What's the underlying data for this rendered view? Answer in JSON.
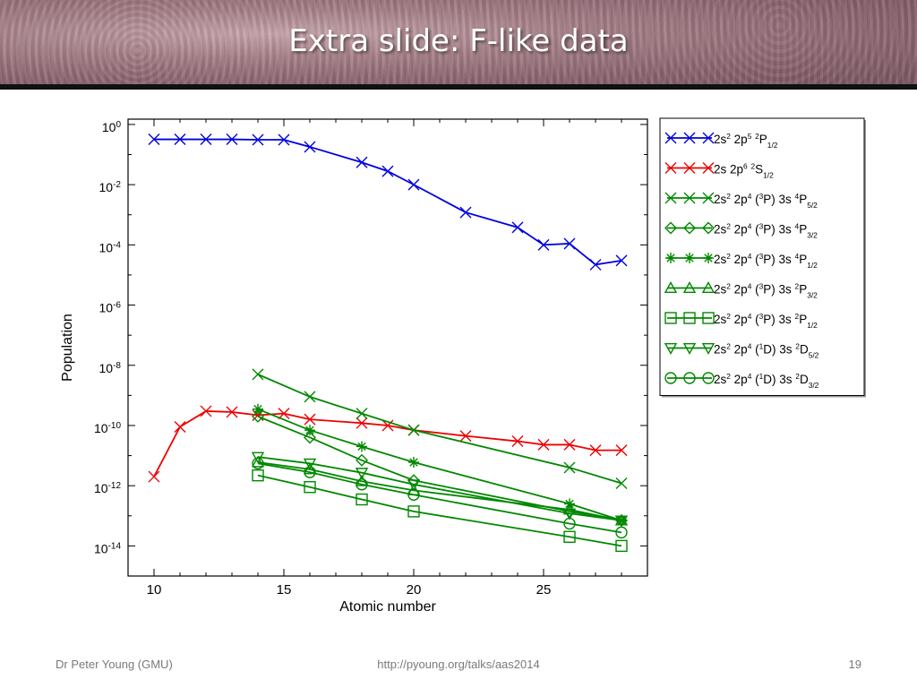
{
  "slide": {
    "title": "Extra slide: F-like data",
    "footer_left": "Dr Peter Young (GMU)",
    "footer_center": "http://pyoung.org/talks/aas2014",
    "footer_right": "19"
  },
  "colors": {
    "blue": "#0000dd",
    "red": "#ee0000",
    "green": "#008800"
  },
  "chart_data": {
    "type": "line",
    "title": "",
    "xlabel": "Atomic number",
    "ylabel": "Population",
    "xlim": [
      9,
      29
    ],
    "ylim": [
      1e-15,
      1.5
    ],
    "yscale": "log",
    "xticks": [
      10,
      15,
      20,
      25
    ],
    "yticks": [
      {
        "exp": 0,
        "label": "10",
        "sup": "0"
      },
      {
        "exp": -2,
        "label": "10",
        "sup": "-2"
      },
      {
        "exp": -4,
        "label": "10",
        "sup": "-4"
      },
      {
        "exp": -6,
        "label": "10",
        "sup": "-6"
      },
      {
        "exp": -8,
        "label": "10",
        "sup": "-8"
      },
      {
        "exp": -10,
        "label": "10",
        "sup": "-10"
      },
      {
        "exp": -12,
        "label": "10",
        "sup": "-12"
      },
      {
        "exp": -14,
        "label": "10",
        "sup": "-14"
      }
    ],
    "legend_position": "right",
    "series": [
      {
        "label": [
          [
            "2s",
            ""
          ],
          [
            "2",
            "sup"
          ],
          [
            " 2p",
            ""
          ],
          [
            "5",
            "sup"
          ],
          [
            " ",
            ""
          ],
          [
            "2",
            "sup"
          ],
          [
            "P",
            ""
          ],
          [
            "1/2",
            "sub"
          ]
        ],
        "color": "#0000dd",
        "marker": "x",
        "x": [
          10,
          11,
          12,
          13,
          14,
          15,
          16,
          18,
          19,
          20,
          22,
          24,
          25,
          26,
          27,
          28
        ],
        "y": [
          0.32,
          0.32,
          0.32,
          0.32,
          0.31,
          0.31,
          0.18,
          0.055,
          0.028,
          0.01,
          0.0012,
          0.00038,
          0.0001,
          0.00011,
          2.2e-05,
          3e-05
        ]
      },
      {
        "label": [
          [
            "2s 2p",
            ""
          ],
          [
            "6",
            "sup"
          ],
          [
            " ",
            ""
          ],
          [
            "2",
            "sup"
          ],
          [
            "S",
            ""
          ],
          [
            "1/2",
            "sub"
          ]
        ],
        "color": "#ee0000",
        "marker": "x",
        "x": [
          10,
          11,
          12,
          13,
          14,
          15,
          16,
          18,
          19,
          20,
          22,
          24,
          25,
          26,
          27,
          28
        ],
        "y": [
          2e-12,
          9e-11,
          3e-10,
          2.8e-10,
          2.2e-10,
          2.5e-10,
          1.6e-10,
          1.2e-10,
          1e-10,
          7e-11,
          4.5e-11,
          3e-11,
          2.3e-11,
          2.3e-11,
          1.5e-11,
          1.5e-11
        ]
      },
      {
        "label": [
          [
            "2s",
            ""
          ],
          [
            "2",
            "sup"
          ],
          [
            " 2p",
            ""
          ],
          [
            "4",
            "sup"
          ],
          [
            " (",
            ""
          ],
          [
            "3",
            "sup"
          ],
          [
            "P) 3s ",
            ""
          ],
          [
            "4",
            "sup"
          ],
          [
            "P",
            ""
          ],
          [
            "5/2",
            "sub"
          ]
        ],
        "color": "#008800",
        "marker": "x",
        "x": [
          14,
          16,
          18,
          20,
          26,
          28
        ],
        "y": [
          5e-09,
          9e-10,
          2.5e-10,
          7e-11,
          4e-12,
          1.2e-12
        ]
      },
      {
        "label": [
          [
            "2s",
            ""
          ],
          [
            "2",
            "sup"
          ],
          [
            " 2p",
            ""
          ],
          [
            "4",
            "sup"
          ],
          [
            " (",
            ""
          ],
          [
            "3",
            "sup"
          ],
          [
            "P) 3s ",
            ""
          ],
          [
            "4",
            "sup"
          ],
          [
            "P",
            ""
          ],
          [
            "3/2",
            "sub"
          ]
        ],
        "color": "#008800",
        "marker": "diamond",
        "x": [
          14,
          16,
          18,
          20,
          26,
          28
        ],
        "y": [
          2e-10,
          4e-11,
          7e-12,
          1.5e-12,
          1.4e-13,
          7e-14
        ]
      },
      {
        "label": [
          [
            "2s",
            ""
          ],
          [
            "2",
            "sup"
          ],
          [
            " 2p",
            ""
          ],
          [
            "4",
            "sup"
          ],
          [
            " (",
            ""
          ],
          [
            "3",
            "sup"
          ],
          [
            "P) 3s ",
            ""
          ],
          [
            "4",
            "sup"
          ],
          [
            "P",
            ""
          ],
          [
            "1/2",
            "sub"
          ]
        ],
        "color": "#008800",
        "marker": "star",
        "x": [
          14,
          16,
          18,
          20,
          26,
          28
        ],
        "y": [
          3.5e-10,
          7e-11,
          2e-11,
          6e-12,
          2.5e-13,
          7e-14
        ]
      },
      {
        "label": [
          [
            "2s",
            ""
          ],
          [
            "2",
            "sup"
          ],
          [
            " 2p",
            ""
          ],
          [
            "4",
            "sup"
          ],
          [
            " (",
            ""
          ],
          [
            "3",
            "sup"
          ],
          [
            "P) 3s ",
            ""
          ],
          [
            "2",
            "sup"
          ],
          [
            "P",
            ""
          ],
          [
            "3/2",
            "sub"
          ]
        ],
        "color": "#008800",
        "marker": "triangle",
        "x": [
          14,
          16,
          18,
          20,
          26,
          28
        ],
        "y": [
          6e-12,
          3.5e-12,
          1.4e-12,
          7e-13,
          1.6e-13,
          7e-14
        ]
      },
      {
        "label": [
          [
            "2s",
            ""
          ],
          [
            "2",
            "sup"
          ],
          [
            " 2p",
            ""
          ],
          [
            "4",
            "sup"
          ],
          [
            " (",
            ""
          ],
          [
            "3",
            "sup"
          ],
          [
            "P) 3s ",
            ""
          ],
          [
            "2",
            "sup"
          ],
          [
            "P",
            ""
          ],
          [
            "1/2",
            "sub"
          ]
        ],
        "color": "#008800",
        "marker": "square",
        "x": [
          14,
          16,
          18,
          20,
          26,
          28
        ],
        "y": [
          2.2e-12,
          9e-13,
          3.5e-13,
          1.4e-13,
          2e-14,
          1e-14
        ]
      },
      {
        "label": [
          [
            "2s",
            ""
          ],
          [
            "2",
            "sup"
          ],
          [
            " 2p",
            ""
          ],
          [
            "4",
            "sup"
          ],
          [
            " (",
            ""
          ],
          [
            "1",
            "sup"
          ],
          [
            "D) 3s ",
            ""
          ],
          [
            "2",
            "sup"
          ],
          [
            "D",
            ""
          ],
          [
            "5/2",
            "sub"
          ]
        ],
        "color": "#008800",
        "marker": "tri-down",
        "x": [
          14,
          16,
          18,
          20,
          26,
          28
        ],
        "y": [
          9e-12,
          5.5e-12,
          2.7e-12,
          1.1e-12,
          1.2e-13,
          7e-14
        ]
      },
      {
        "label": [
          [
            "2s",
            ""
          ],
          [
            "2",
            "sup"
          ],
          [
            " 2p",
            ""
          ],
          [
            "4",
            "sup"
          ],
          [
            " (",
            ""
          ],
          [
            "1",
            "sup"
          ],
          [
            "D) 3s ",
            ""
          ],
          [
            "2",
            "sup"
          ],
          [
            "D",
            ""
          ],
          [
            "3/2",
            "sub"
          ]
        ],
        "color": "#008800",
        "marker": "circle",
        "x": [
          14,
          16,
          18,
          20,
          26,
          28
        ],
        "y": [
          5.5e-12,
          2.8e-12,
          1.1e-12,
          5e-13,
          5.5e-14,
          2.8e-14
        ]
      }
    ]
  }
}
